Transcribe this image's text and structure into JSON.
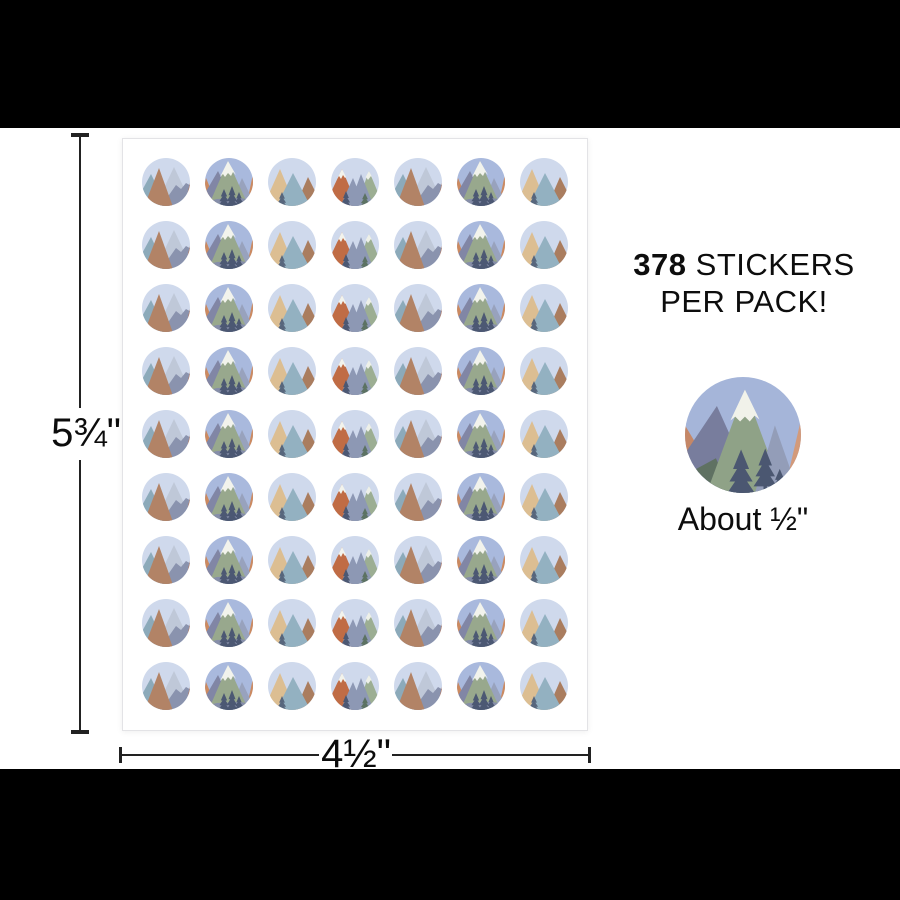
{
  "pack": {
    "count": "378",
    "count_suffix": " STICKERS",
    "line2": "PER PACK!"
  },
  "sample": {
    "label": "About ½\""
  },
  "dimensions": {
    "height": "5¾\"",
    "width": "4½\""
  },
  "sheet": {
    "rows": 9,
    "columns": 7,
    "stickers_per_sheet": 63,
    "column_pattern": [
      "A",
      "B",
      "C",
      "D",
      "A",
      "B",
      "C"
    ]
  },
  "designs": {
    "A": {
      "bg": "#cfd9ec",
      "left": "#8caaba",
      "center": "#b28366",
      "right_top": "#bfc8d8",
      "right_bottom": "#8a93ae",
      "edge": "#c3764e"
    },
    "B": {
      "bg": "#a9b9dd",
      "left": "#8186a5",
      "center": "#98a88d",
      "snow": "#f2f3ec",
      "right": "#98a2bd",
      "edge": "#cc8a60",
      "tree": "#4c5873",
      "base": "#868ea9"
    },
    "C": {
      "bg": "#cfd9ec",
      "left": "#dcbe92",
      "center": "#93b1c1",
      "right": "#aa7d5f",
      "tree": "#57667c"
    },
    "D": {
      "bg": "#cfd9ec",
      "left": "#c06c45",
      "snow": "#f2f3ec",
      "center": "#8d98b4",
      "right": "#9cae93",
      "right_snow": "#eef0e8",
      "tree_left": "#4c5873",
      "tree_right": "#5c7263"
    },
    "BIG": {
      "bg": "#a5b5d9",
      "left": "#787d9d",
      "center": "#8fa287",
      "snow": "#f1f2ea",
      "right": "#939db8",
      "edge_left": "#c58767",
      "edge_right": "#d39a7a",
      "tree": "#4b5771",
      "bottom_green": "#5f7162"
    }
  },
  "colors": {
    "letterbox": "#000000",
    "background": "#ffffff",
    "sheet_border": "#e3e3e6",
    "dimension_line": "#222222",
    "text": "#0d0d0d"
  }
}
